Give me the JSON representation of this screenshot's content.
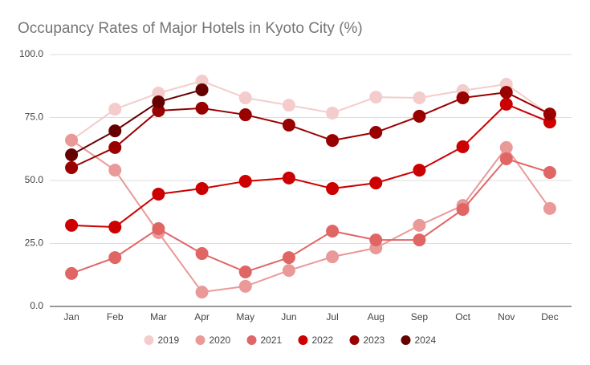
{
  "chart_data": {
    "type": "line",
    "title": "Occupancy Rates of Major Hotels in Kyoto City (%)",
    "categories": [
      "Jan",
      "Feb",
      "Mar",
      "Apr",
      "May",
      "Jun",
      "Jul",
      "Aug",
      "Sep",
      "Oct",
      "Nov",
      "Dec"
    ],
    "series": [
      {
        "name": "2019",
        "color": "#f4cccc",
        "values": [
          66,
          78.3,
          84.7,
          89.5,
          82.8,
          79.9,
          76.8,
          83.1,
          82.8,
          85.7,
          88.2,
          76.1
        ]
      },
      {
        "name": "2020",
        "color": "#ea9999",
        "values": [
          66,
          54.1,
          29.3,
          5.7,
          8,
          14.3,
          19.7,
          23.2,
          32.2,
          40.1,
          63.1,
          38.9
        ]
      },
      {
        "name": "2021",
        "color": "#e06666",
        "values": [
          13.1,
          19.4,
          30.9,
          21,
          13.7,
          19.4,
          29.9,
          26.4,
          26.4,
          38.5,
          58.6,
          53.2
        ]
      },
      {
        "name": "2022",
        "color": "#cc0000",
        "values": [
          32.2,
          31.5,
          44.6,
          46.8,
          49.7,
          51,
          46.8,
          49,
          54.1,
          63.4,
          80.3,
          73.2
        ]
      },
      {
        "name": "2023",
        "color": "#990000",
        "values": [
          55.1,
          63.1,
          77.7,
          78.7,
          76.1,
          72,
          65.9,
          69.1,
          75.5,
          82.8,
          85,
          76.4
        ]
      },
      {
        "name": "2024",
        "color": "#660000",
        "values": [
          60.2,
          69.7,
          81.2,
          86,
          null,
          null,
          null,
          null,
          null,
          null,
          null,
          null
        ]
      }
    ],
    "ylim": [
      0,
      100
    ],
    "yticks": [
      {
        "value": 0,
        "label": "0.0"
      },
      {
        "value": 25,
        "label": "25.0"
      },
      {
        "value": 50,
        "label": "50.0"
      },
      {
        "value": 75,
        "label": "75.0"
      },
      {
        "value": 100,
        "label": "100.0"
      }
    ],
    "grid": true,
    "legend": "bottom"
  }
}
